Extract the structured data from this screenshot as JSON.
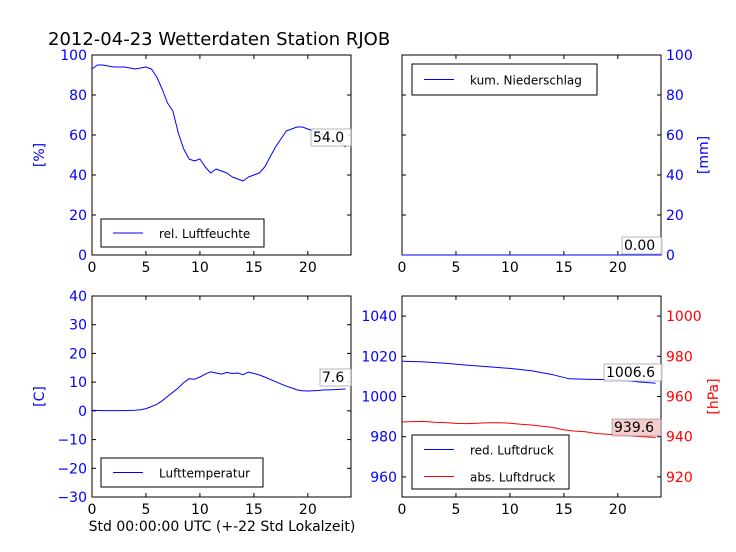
{
  "figure": {
    "title": "2012-04-23 Wetterdaten Station RJOB",
    "xlabel": "Std 00:00:00 UTC (+-22 Std Lokalzeit)"
  },
  "chart_data": [
    {
      "type": "line",
      "ylabel": "[%]",
      "xlim": [
        0,
        24
      ],
      "ylim": [
        0,
        100
      ],
      "xticks": [
        "0",
        "5",
        "10",
        "15",
        "20"
      ],
      "yticks": [
        "0",
        "20",
        "40",
        "60",
        "80",
        "100"
      ],
      "legend": "lower-left",
      "series": [
        {
          "name": "rel. Luftfeuchte",
          "color": "#0000ff",
          "x": [
            0,
            0.5,
            1,
            2,
            3,
            4,
            5,
            5.5,
            6,
            6.5,
            7,
            7.5,
            8,
            8.5,
            9,
            9.5,
            10,
            10.5,
            11,
            11.5,
            12,
            12.5,
            13,
            13.5,
            14,
            14.5,
            15,
            15.5,
            16,
            16.5,
            17,
            17.5,
            18,
            18.5,
            19,
            19.5,
            20,
            20.5,
            21,
            21.5,
            22,
            22.5,
            23,
            23.5
          ],
          "y": [
            93,
            95,
            95,
            94,
            94,
            93,
            94,
            93,
            89,
            83,
            76,
            72,
            61,
            53,
            48,
            47,
            48,
            44,
            41,
            43,
            42,
            41,
            39,
            38,
            37,
            39,
            40,
            41,
            44,
            49,
            54,
            58,
            62,
            63,
            64,
            64,
            63,
            62,
            61,
            60,
            58,
            57,
            56,
            54
          ]
        }
      ],
      "annotation": "54.0"
    },
    {
      "type": "line",
      "ylabel": "[mm]",
      "xlim": [
        0,
        24
      ],
      "ylim": [
        0,
        100
      ],
      "xticks": [
        "0",
        "5",
        "10",
        "15",
        "20"
      ],
      "yticks": [
        "0",
        "20",
        "40",
        "60",
        "80",
        "100"
      ],
      "legend": "upper-left",
      "series": [
        {
          "name": "kum. Niederschlag",
          "color": "#0000ff",
          "x": [
            0,
            24
          ],
          "y": [
            0,
            0
          ]
        }
      ],
      "annotation": "0.00"
    },
    {
      "type": "line",
      "ylabel": "[C]",
      "xlim": [
        0,
        24
      ],
      "ylim": [
        -30,
        40
      ],
      "xticks": [
        "0",
        "5",
        "10",
        "15",
        "20"
      ],
      "yticks": [
        "−30",
        "−20",
        "−10",
        "0",
        "10",
        "20",
        "30",
        "40"
      ],
      "legend": "lower-left",
      "series": [
        {
          "name": "Lufttemperatur",
          "color": "#0000ff",
          "x": [
            0,
            1,
            2,
            3,
            4,
            4.5,
            5,
            5.5,
            6,
            6.5,
            7,
            7.5,
            8,
            8.5,
            9,
            9.5,
            10,
            10.5,
            11,
            11.5,
            12,
            12.5,
            13,
            13.5,
            14,
            14.5,
            15,
            15.5,
            16,
            16.5,
            17,
            17.5,
            18,
            18.5,
            19,
            19.5,
            20,
            20.5,
            21,
            21.5,
            22,
            22.5,
            23,
            23.5
          ],
          "y": [
            0.2,
            0.1,
            0.1,
            0.1,
            0.2,
            0.4,
            0.8,
            1.5,
            2.3,
            3.5,
            5.0,
            6.5,
            8.0,
            9.8,
            11.2,
            11.0,
            11.8,
            12.8,
            13.6,
            13.2,
            12.8,
            13.4,
            13.0,
            13.2,
            12.6,
            13.5,
            13.0,
            12.5,
            11.8,
            11.0,
            10.2,
            9.4,
            8.6,
            8.0,
            7.3,
            7.0,
            6.9,
            7.0,
            7.1,
            7.3,
            7.3,
            7.4,
            7.5,
            7.6
          ]
        }
      ],
      "annotation": "7.6"
    },
    {
      "type": "line",
      "ylim": [
        950,
        1050
      ],
      "y2label": "[hPa]",
      "y2lim": [
        910,
        1010
      ],
      "xlim": [
        0,
        24
      ],
      "xticks": [
        "0",
        "5",
        "10",
        "15",
        "20"
      ],
      "yticks": [
        "960",
        "980",
        "1000",
        "1020",
        "1040"
      ],
      "y2ticks": [
        "920",
        "940",
        "960",
        "980",
        "1000"
      ],
      "legend": "lower-left",
      "series": [
        {
          "name": "red. Luftdruck",
          "color": "#0000ff",
          "axis": "left",
          "x": [
            0,
            2,
            4,
            6,
            8,
            10,
            12,
            14,
            15.5,
            17,
            19,
            20,
            21,
            22,
            23,
            23.5
          ],
          "y": [
            1017.5,
            1017.2,
            1016.5,
            1015.6,
            1014.8,
            1014.0,
            1012.8,
            1010.8,
            1008.8,
            1008.6,
            1008.4,
            1008.2,
            1007.8,
            1007.2,
            1006.8,
            1006.6
          ]
        },
        {
          "name": "abs. Luftdruck",
          "color": "#ff0000",
          "axis": "right",
          "x": [
            0,
            1,
            2,
            3,
            4,
            5,
            6,
            7,
            8,
            9,
            10,
            11,
            12,
            13,
            14,
            15,
            16,
            17,
            18,
            19,
            20,
            21,
            22,
            23,
            23.5
          ],
          "y": [
            947.3,
            947.5,
            947.6,
            947.2,
            947.0,
            946.6,
            946.5,
            946.7,
            946.9,
            946.9,
            946.7,
            946.2,
            945.8,
            945.2,
            944.6,
            943.4,
            942.8,
            942.5,
            941.6,
            941.2,
            940.9,
            940.5,
            940.1,
            939.8,
            939.6
          ]
        }
      ],
      "annotations": [
        "1006.6",
        "939.6"
      ]
    }
  ]
}
